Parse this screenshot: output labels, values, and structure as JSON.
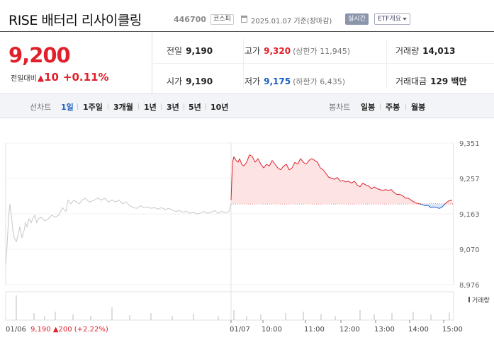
{
  "header": {
    "title": "RISE 배터리 리사이클링",
    "code": "446700",
    "market": "코스피",
    "date_text": "2025.01.07 기준(장마감)",
    "realtime_label": "실시간",
    "etf_label": "ETF개요"
  },
  "quote": {
    "price": "9,200",
    "change_label": "전일대비",
    "change_arrow": "▲",
    "change_amount": "10",
    "change_pct": "+0.11%",
    "prev_close_label": "전일",
    "prev_close": "9,190",
    "high_label": "고가",
    "high": "9,320",
    "upper_limit": "(상한가 11,945)",
    "volume_label": "거래량",
    "volume": "14,013",
    "open_label": "시가",
    "open": "9,190",
    "low_label": "저가",
    "low": "9,175",
    "lower_limit": "(하한가 6,435)",
    "value_label": "거래대금",
    "value": "129 백만"
  },
  "periods": {
    "line_label": "선차트",
    "line_items": [
      "1일",
      "1주일",
      "3개월",
      "1년",
      "3년",
      "5년",
      "10년"
    ],
    "active": "1일",
    "candle_label": "봉차트",
    "candle_items": [
      "일봉",
      "주봉",
      "월봉"
    ]
  },
  "chart_data": {
    "type": "line",
    "y_ticks": [
      "9,351",
      "9,257",
      "9,163",
      "9,070",
      "8,976"
    ],
    "ylim": [
      8976,
      9351
    ],
    "volume_label": "거래량",
    "x_ticks": [
      "01/06",
      "01/07",
      "10:00",
      "11:00",
      "12:00",
      "13:00",
      "14:00",
      "15:00"
    ],
    "prev_day_summary": {
      "date": "01/06",
      "close": "9,190",
      "arrow": "▲",
      "change": "200",
      "pct": "(+2.22%)"
    },
    "reference_price": 9190,
    "colors": {
      "up": "#e0202b",
      "down": "#1a5fc4",
      "prev": "#c8c8c8",
      "fill": "#fde3e3"
    },
    "prev_series": {
      "x": [
        0,
        2,
        4,
        6,
        8,
        10,
        12,
        15,
        18,
        20,
        23,
        26,
        28,
        30,
        33,
        36,
        38,
        41,
        44,
        46,
        50,
        55,
        60,
        65,
        70,
        75,
        80,
        85,
        88,
        92,
        96,
        100,
        104,
        108,
        112,
        118,
        125,
        130,
        135,
        140,
        145,
        150,
        155,
        160,
        165,
        170,
        175,
        180,
        185,
        190,
        195,
        200,
        205,
        210,
        215,
        220,
        225,
        230,
        235,
        240,
        245,
        250,
        255,
        260,
        265,
        270,
        275,
        280,
        285,
        290,
        295,
        300,
        305,
        310,
        315,
        318
      ],
      "y": [
        9030,
        9080,
        9150,
        9190,
        9160,
        9120,
        9100,
        9090,
        9110,
        9130,
        9100,
        9120,
        9140,
        9130,
        9150,
        9140,
        9150,
        9160,
        9140,
        9150,
        9155,
        9145,
        9150,
        9160,
        9155,
        9160,
        9180,
        9170,
        9200,
        9190,
        9200,
        9195,
        9190,
        9200,
        9205,
        9195,
        9200,
        9205,
        9200,
        9205,
        9195,
        9200,
        9195,
        9200,
        9190,
        9195,
        9185,
        9180,
        9178,
        9185,
        9180,
        9182,
        9178,
        9180,
        9176,
        9180,
        9175,
        9178,
        9174,
        9170,
        9172,
        9168,
        9170,
        9165,
        9168,
        9163,
        9166,
        9170,
        9165,
        9168,
        9172,
        9165,
        9170,
        9166,
        9170,
        9190
      ]
    },
    "today_series": {
      "x": [
        318,
        320,
        322,
        325,
        328,
        330,
        333,
        336,
        340,
        344,
        348,
        352,
        356,
        360,
        364,
        368,
        372,
        376,
        380,
        384,
        388,
        392,
        396,
        400,
        404,
        408,
        412,
        416,
        420,
        424,
        428,
        432,
        436,
        440,
        444,
        448,
        452,
        456,
        460,
        464,
        468,
        472,
        476,
        480,
        484,
        488,
        492,
        496,
        500,
        504,
        508,
        512,
        516,
        520,
        524,
        528,
        532,
        536,
        540,
        544,
        548,
        552,
        556,
        560,
        564,
        568,
        572,
        576,
        580,
        584,
        588,
        592,
        596,
        600,
        604,
        608,
        612,
        616,
        620,
        625,
        630
      ],
      "y": [
        9200,
        9300,
        9315,
        9305,
        9300,
        9310,
        9295,
        9290,
        9300,
        9320,
        9315,
        9300,
        9310,
        9295,
        9285,
        9295,
        9290,
        9305,
        9295,
        9285,
        9280,
        9290,
        9295,
        9280,
        9285,
        9300,
        9295,
        9310,
        9300,
        9295,
        9305,
        9310,
        9305,
        9300,
        9285,
        9280,
        9270,
        9260,
        9258,
        9255,
        9260,
        9250,
        9252,
        9248,
        9250,
        9245,
        9250,
        9240,
        9235,
        9245,
        9240,
        9238,
        9230,
        9235,
        9230,
        9228,
        9225,
        9228,
        9225,
        9228,
        9220,
        9215,
        9215,
        9212,
        9205,
        9205,
        9200,
        9195,
        9192,
        9190,
        9188,
        9185,
        9186,
        9180,
        9182,
        9180,
        9178,
        9182,
        9190,
        9198,
        9200
      ]
    },
    "volume_bars": [
      {
        "x": 15,
        "h": 35
      },
      {
        "x": 40,
        "h": 10
      },
      {
        "x": 55,
        "h": 6
      },
      {
        "x": 70,
        "h": 12
      },
      {
        "x": 95,
        "h": 8
      },
      {
        "x": 120,
        "h": 6
      },
      {
        "x": 150,
        "h": 18
      },
      {
        "x": 175,
        "h": 7
      },
      {
        "x": 205,
        "h": 10
      },
      {
        "x": 235,
        "h": 6
      },
      {
        "x": 265,
        "h": 9
      },
      {
        "x": 300,
        "h": 5
      },
      {
        "x": 322,
        "h": 14
      },
      {
        "x": 340,
        "h": 6
      },
      {
        "x": 360,
        "h": 8
      },
      {
        "x": 395,
        "h": 10
      },
      {
        "x": 420,
        "h": 12
      },
      {
        "x": 445,
        "h": 9
      },
      {
        "x": 465,
        "h": 6
      },
      {
        "x": 500,
        "h": 14
      },
      {
        "x": 520,
        "h": 8
      },
      {
        "x": 545,
        "h": 10
      },
      {
        "x": 575,
        "h": 12
      },
      {
        "x": 600,
        "h": 8
      },
      {
        "x": 626,
        "h": 11
      }
    ]
  }
}
